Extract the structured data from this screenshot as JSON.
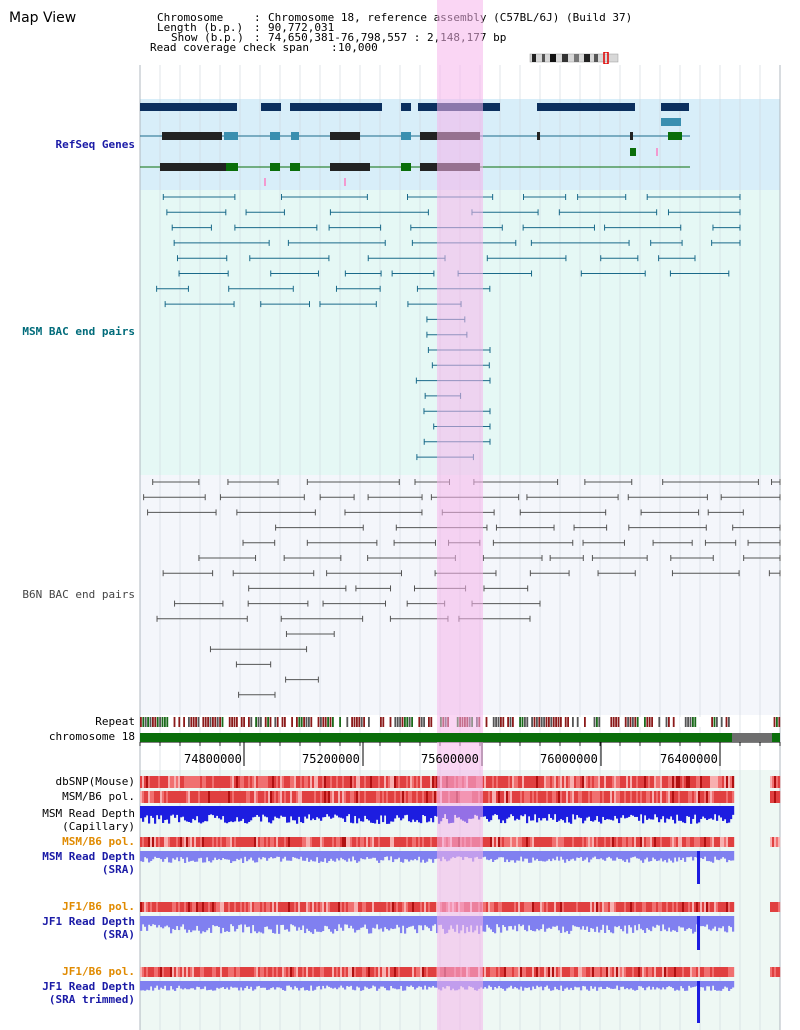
{
  "view_title": "Map View",
  "header": {
    "chromosome_label": "Chromosome",
    "chromosome_value": "Chromosome 18, reference assembly (C57BL/6J) (Build 37)",
    "length_label": "Length (b.p.)",
    "length_value": "90,772,031",
    "show_label": "Show (b.p.)",
    "show_value": "74,650,381-76,798,557 : 2,148,177 bp",
    "coverage_label": "Read coverage check span",
    "coverage_value": "10,000"
  },
  "tracks": {
    "refseq": "RefSeq Genes",
    "msm_bac": "MSM BAC end pairs",
    "b6n_bac": "B6N BAC end pairs",
    "repeat": "Repeat",
    "chromosome": "chromosome 18",
    "dbsnp": "dbSNP(Mouse)",
    "msm_b6_pol_1": "MSM/B6 pol.",
    "msm_read_depth_cap_1": "MSM Read Depth",
    "msm_read_depth_cap_2": "(Capillary)",
    "msm_b6_pol_2": "MSM/B6 pol.",
    "msm_read_depth_sra_1": "MSM Read Depth",
    "msm_read_depth_sra_2": "(SRA)",
    "jf1_b6_pol_1": "JF1/B6 pol.",
    "jf1_read_depth_sra_1": "JF1 Read Depth",
    "jf1_read_depth_sra_2": "(SRA)",
    "jf1_b6_pol_2": "JF1/B6 pol.",
    "jf1_read_depth_trim_1": "JF1 Read Depth",
    "jf1_read_depth_trim_2": "(SRA trimmed)"
  },
  "axis": {
    "ticks": [
      "74800000",
      "75200000",
      "75600000",
      "76000000",
      "76400000"
    ]
  },
  "colors": {
    "refseq_label": "#1a1aa6",
    "msm_label": "#006b7a",
    "b6n_label": "#555555",
    "orange_label": "#e08a00",
    "blue_label": "#1a1aa6",
    "highlight": "#f5b4eb"
  }
}
